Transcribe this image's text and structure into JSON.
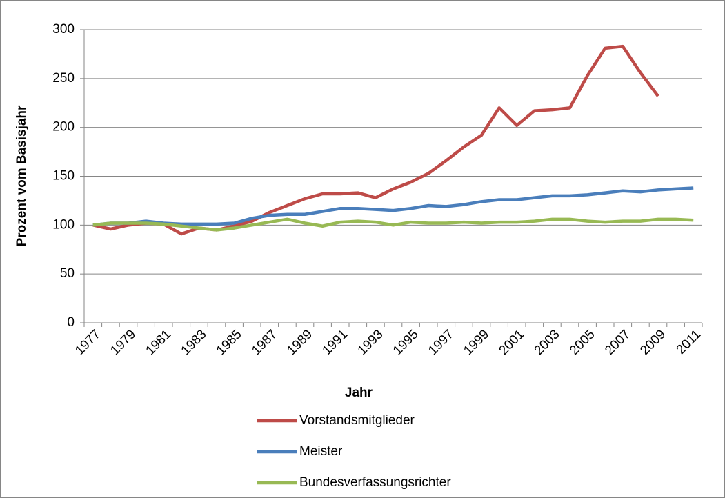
{
  "chart_data": {
    "type": "line",
    "x_label": "Jahr",
    "y_label": "Prozent vom Basisjahr",
    "categories": [
      "1977",
      null,
      "1979",
      null,
      "1981",
      null,
      "1983",
      null,
      "1985",
      null,
      "1987",
      null,
      "1989",
      null,
      "1991",
      null,
      "1993",
      null,
      "1995",
      null,
      "1997",
      null,
      "1999",
      null,
      "2001",
      null,
      "2003",
      null,
      "2005",
      null,
      "2007",
      null,
      "2009",
      null,
      "2011"
    ],
    "series": [
      {
        "name": "Vorstandsmitglieder",
        "color": "#be4b48",
        "values": [
          100,
          96,
          100,
          102,
          101,
          91,
          97,
          95,
          99,
          104,
          113,
          120,
          127,
          132,
          132,
          133,
          128,
          137,
          144,
          153,
          166,
          180,
          192,
          220,
          202,
          217,
          218,
          220,
          253,
          281,
          283,
          256,
          232,
          null,
          null
        ]
      },
      {
        "name": "Meister",
        "color": "#4a7ebb",
        "values": [
          100,
          102,
          102,
          104,
          102,
          101,
          101,
          101,
          102,
          107,
          110,
          111,
          111,
          114,
          117,
          117,
          116,
          115,
          117,
          120,
          119,
          121,
          124,
          126,
          126,
          128,
          130,
          130,
          131,
          133,
          135,
          134,
          136,
          137,
          138
        ]
      },
      {
        "name": "Bundesverfassungsrichter",
        "color": "#98b954",
        "values": [
          100,
          102,
          102,
          102,
          101,
          99,
          97,
          95,
          97,
          100,
          103,
          106,
          102,
          99,
          103,
          104,
          103,
          100,
          103,
          102,
          102,
          103,
          102,
          103,
          103,
          104,
          106,
          106,
          104,
          103,
          104,
          104,
          106,
          106,
          105
        ]
      }
    ],
    "ylim": [
      0,
      300
    ],
    "yticks": [
      0,
      50,
      100,
      150,
      200,
      250,
      300
    ],
    "grid": true
  }
}
